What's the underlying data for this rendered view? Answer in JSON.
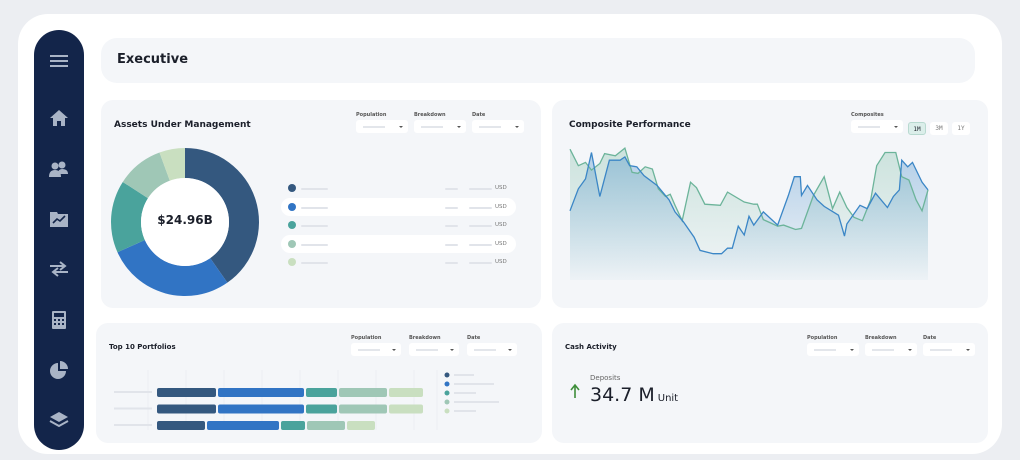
{
  "header": {
    "title": "Executive"
  },
  "sidebar": {
    "icons": [
      "menu-icon",
      "home-icon",
      "users-icon",
      "chart-folder-icon",
      "transfer-icon",
      "calculator-icon",
      "pie-chart-icon",
      "layers-icon"
    ]
  },
  "filters": {
    "population": "Population",
    "breakdown": "Breakdown",
    "date": "Date",
    "composites": "Composites"
  },
  "aum": {
    "title": "Assets Under Management",
    "total": "$24.96B",
    "legend_unit": "USD",
    "colors": [
      "#34587f",
      "#3174c4",
      "#4aa39c",
      "#9fc7b6",
      "#c9dfc0"
    ]
  },
  "composite": {
    "title": "Composite Performance",
    "ranges": [
      "1M",
      "3M",
      "1Y"
    ],
    "active_range": "1M",
    "colors": [
      "#3b86c6",
      "#6cb49a"
    ]
  },
  "top10": {
    "title": "Top 10 Portfolios"
  },
  "cash": {
    "title": "Cash Activity",
    "metric_label": "Deposits",
    "metric_value": "34.7 M",
    "metric_unit": "Unit",
    "trend": "up",
    "trend_color": "#3e8e3a"
  },
  "chart_data": [
    {
      "type": "pie",
      "title": "Assets Under Management",
      "center_label": "$24.96B",
      "values_percent": [
        40.3,
        28.0,
        15.8,
        10.3,
        5.6
      ]
    },
    {
      "type": "area",
      "title": "Composite Performance",
      "x_range_label": "1M",
      "series": [
        {
          "points": [
            [
              0,
              42
            ],
            [
              0.7,
              62
            ],
            [
              1.3,
              71
            ],
            [
              1.8,
              95
            ],
            [
              2.5,
              55
            ],
            [
              3.3,
              88
            ],
            [
              4.2,
              88
            ],
            [
              4.6,
              91
            ],
            [
              5,
              83
            ],
            [
              5.6,
              82
            ],
            [
              6.2,
              74
            ],
            [
              7.3,
              65
            ],
            [
              8.3,
              52
            ],
            [
              8.8,
              41
            ],
            [
              9.5,
              32
            ],
            [
              10.4,
              18
            ],
            [
              10.9,
              6
            ],
            [
              12,
              3
            ],
            [
              12.7,
              3
            ],
            [
              13.2,
              8
            ],
            [
              13.6,
              8
            ],
            [
              14.1,
              28
            ],
            [
              14.6,
              20
            ],
            [
              15,
              37
            ],
            [
              15.4,
              29
            ],
            [
              16.2,
              41
            ],
            [
              16.8,
              35
            ],
            [
              17.4,
              29
            ],
            [
              18.3,
              56
            ],
            [
              18.8,
              73
            ],
            [
              19.3,
              73
            ],
            [
              19.4,
              56
            ],
            [
              19.9,
              65
            ],
            [
              20.7,
              52
            ],
            [
              21.3,
              46
            ],
            [
              22.5,
              38
            ],
            [
              23,
              19
            ],
            [
              23.2,
              30
            ],
            [
              24.3,
              47
            ],
            [
              24.9,
              44
            ],
            [
              25.6,
              58
            ],
            [
              26.6,
              45
            ],
            [
              27.1,
              55
            ],
            [
              27.6,
              61
            ],
            [
              27.8,
              88
            ],
            [
              28.3,
              82
            ],
            [
              28.7,
              86
            ],
            [
              29.5,
              68
            ],
            [
              30,
              61
            ]
          ]
        },
        {
          "points": [
            [
              0,
              98
            ],
            [
              0.7,
              83
            ],
            [
              1.3,
              86
            ],
            [
              1.8,
              79
            ],
            [
              2.5,
              85
            ],
            [
              2.9,
              94
            ],
            [
              3.8,
              92
            ],
            [
              4.6,
              99
            ],
            [
              5.2,
              77
            ],
            [
              5.7,
              76
            ],
            [
              6.3,
              82
            ],
            [
              6.9,
              80
            ],
            [
              7.4,
              62
            ],
            [
              8,
              55
            ],
            [
              8.4,
              57
            ],
            [
              8.8,
              47
            ],
            [
              9.4,
              33
            ],
            [
              10.1,
              68
            ],
            [
              10.6,
              63
            ],
            [
              11.3,
              48
            ],
            [
              12.6,
              47
            ],
            [
              13.2,
              59
            ],
            [
              14.6,
              50
            ],
            [
              15.4,
              48
            ],
            [
              15.7,
              48
            ],
            [
              16.2,
              34
            ],
            [
              16.8,
              31
            ],
            [
              17.4,
              28
            ],
            [
              17.9,
              29
            ],
            [
              18.9,
              25
            ],
            [
              19.4,
              26
            ],
            [
              20.4,
              56
            ],
            [
              21.3,
              73
            ],
            [
              22,
              44
            ],
            [
              22.6,
              59
            ],
            [
              23.2,
              45
            ],
            [
              23.8,
              36
            ],
            [
              24.5,
              33
            ],
            [
              25.2,
              52
            ],
            [
              25.7,
              83
            ],
            [
              26.4,
              95
            ],
            [
              27.3,
              95
            ],
            [
              27.8,
              73
            ],
            [
              28.4,
              70
            ],
            [
              29,
              52
            ],
            [
              29.5,
              42
            ],
            [
              30,
              61
            ]
          ]
        }
      ]
    },
    {
      "type": "bar",
      "orientation": "horizontal",
      "stacked": true,
      "title": "Top 10 Portfolios",
      "series_values": [
        [
          61,
          88,
          33,
          50,
          36
        ],
        [
          61,
          88,
          33,
          50,
          36
        ],
        [
          50,
          74,
          26,
          40,
          30
        ]
      ]
    }
  ]
}
